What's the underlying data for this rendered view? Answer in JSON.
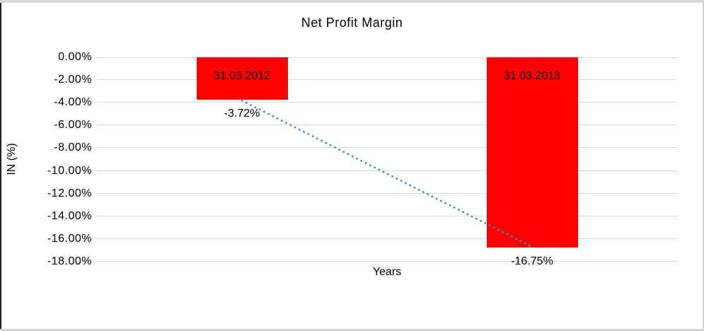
{
  "frame": {
    "background": "#ffffff",
    "border_top_color": "#d7d7d7",
    "border_bottom_color": "#d2d2d2",
    "border_left_color": "#1f1f1f",
    "border_right_color": "#d2d2d2"
  },
  "chart_data": {
    "type": "bar",
    "title": "Net Profit Margin",
    "xlabel": "Years",
    "ylabel": "IN (%)",
    "categories": [
      "31.03.2012",
      "31.03.2013"
    ],
    "values": [
      -3.72,
      -16.75
    ],
    "data_labels": [
      "-3.72%",
      "-16.75%"
    ],
    "bar_color": "#ff0000",
    "text_color": "#000000",
    "ylim": [
      -18,
      0
    ],
    "ytick_values": [
      0,
      -2,
      -4,
      -6,
      -8,
      -10,
      -12,
      -14,
      -16,
      -18
    ],
    "ytick_labels": [
      "0.00%",
      "-2.00%",
      "-4.00%",
      "-6.00%",
      "-8.00%",
      "-10.00%",
      "-12.00%",
      "-14.00%",
      "-16.00%",
      "-18.00%"
    ],
    "grid": true,
    "gridline_color": "#d9d9d9",
    "legend": "none",
    "trendline": {
      "type": "linear",
      "style": "dotted",
      "color": "#4a86c8"
    }
  }
}
